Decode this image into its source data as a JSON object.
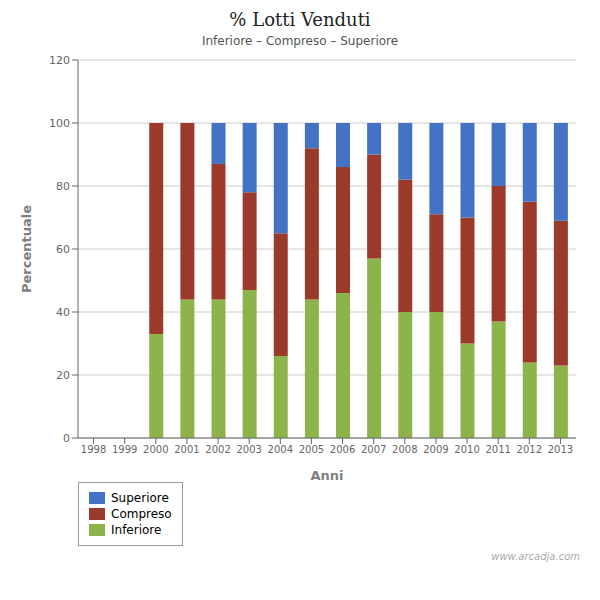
{
  "chart_data": {
    "type": "bar",
    "stacked": true,
    "title": "% Lotti Venduti",
    "subtitle": "Inferiore – Compreso – Superiore",
    "xlabel": "Anni",
    "ylabel": "Percentuale",
    "annotations": [
      "www.arcadja.com"
    ],
    "categories": [
      "1998",
      "1999",
      "2000",
      "2001",
      "2002",
      "2003",
      "2004",
      "2005",
      "2006",
      "2007",
      "2008",
      "2009",
      "2010",
      "2011",
      "2012",
      "2013"
    ],
    "series": [
      {
        "name": "Inferiore",
        "color": "#8DB44A",
        "values": [
          0,
          0,
          33,
          44,
          44,
          47,
          26,
          44,
          46,
          57,
          40,
          40,
          30,
          37,
          24,
          23
        ]
      },
      {
        "name": "Compreso",
        "color": "#9B3A2A",
        "values": [
          0,
          0,
          67,
          56,
          43,
          31,
          39,
          48,
          40,
          33,
          42,
          31,
          40,
          43,
          51,
          46
        ]
      },
      {
        "name": "Superiore",
        "color": "#4472C4",
        "values": [
          0,
          0,
          0,
          0,
          13,
          22,
          35,
          8,
          14,
          10,
          18,
          29,
          30,
          20,
          25,
          31
        ]
      }
    ],
    "ylim": [
      0,
      120
    ],
    "yticks": [
      0,
      20,
      40,
      60,
      80,
      100,
      120
    ],
    "grid": true,
    "legend": "lower left"
  }
}
